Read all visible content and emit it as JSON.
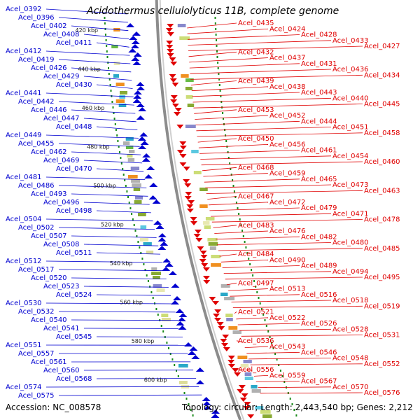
{
  "title": "Acidothermus cellulolyticus 11B, complete genome",
  "accession": {
    "label": "Accession:",
    "value": "NC_008578"
  },
  "topology": {
    "label": "Topology:",
    "value": "circular"
  },
  "length": {
    "label": "Length:",
    "value": "2,443,540 bp"
  },
  "genes": {
    "label": "Genes:",
    "value": "2,212"
  },
  "colors": {
    "forward": "#e00000",
    "reverse": "#0000d0",
    "backbone": "#999999",
    "scale_dots": "#1a8a1a"
  },
  "scale_labels": [
    "420 kbp",
    "440 kbp",
    "460 kbp",
    "480 kbp",
    "500 kbp",
    "520 kbp",
    "540 kbp",
    "560 kbp",
    "580 kbp",
    "600 kbp"
  ],
  "left_labels": [
    "Acel_0392",
    "Acel_0396",
    "Acel_0402",
    "Acel_0408",
    "Acel_0411",
    "Acel_0412",
    "Acel_0419",
    "Acel_0426",
    "Acel_0429",
    "Acel_0430",
    "Acel_0441",
    "Acel_0442",
    "Acel_0446",
    "Acel_0447",
    "Acel_0448",
    "Acel_0449",
    "Acel_0455",
    "Acel_0462",
    "Acel_0469",
    "Acel_0470",
    "Acel_0481",
    "Acel_0486",
    "Acel_0493",
    "Acel_0496",
    "Acel_0498",
    "Acel_0504",
    "Acel_0502",
    "Acel_0507",
    "Acel_0508",
    "Acel_0511",
    "Acel_0512",
    "Acel_0517",
    "Acel_0520",
    "Acel_0523",
    "Acel_0524",
    "Acel_0530",
    "Acel_0532",
    "Acel_0540",
    "Acel_0541",
    "Acel_0545",
    "Acel_0551",
    "Acel_0557",
    "Acel_0561",
    "Acel_0560",
    "Acel_0568",
    "Acel_0574",
    "Acel_0575"
  ],
  "right_labels": [
    "Acel_0435",
    "Acel_0424",
    "Acel_0428",
    "Acel_0433",
    "Acel_0427",
    "Acel_0432",
    "Acel_0437",
    "Acel_0431",
    "Acel_0436",
    "Acel_0434",
    "Acel_0439",
    "Acel_0438",
    "Acel_0443",
    "Acel_0440",
    "Acel_0445",
    "Acel_0453",
    "Acel_0452",
    "Acel_0444",
    "Acel_0451",
    "Acel_0458",
    "Acel_0450",
    "Acel_0456",
    "Acel_0461",
    "Acel_0454",
    "Acel_0460",
    "Acel_0468",
    "Acel_0459",
    "Acel_0465",
    "Acel_0473",
    "Acel_0463",
    "Acel_0467",
    "Acel_0472",
    "Acel_0479",
    "Acel_0471",
    "Acel_0478",
    "Acel_0483",
    "Acel_0476",
    "Acel_0482",
    "Acel_0480",
    "Acel_0485",
    "Acel_0484",
    "Acel_0490",
    "Acel_0489",
    "Acel_0494",
    "Acel_0495",
    "Acel_0497",
    "Acel_0513",
    "Acel_0516",
    "Acel_0518",
    "Acel_0519",
    "Acel_0521",
    "Acel_0522",
    "Acel_0526",
    "Acel_0528",
    "Acel_0531",
    "Acel_0536",
    "Acel_0543",
    "Acel_0546",
    "Acel_0548",
    "Acel_0552",
    "Acel_0556",
    "Acel_0559",
    "Acel_0567",
    "Acel_0570",
    "Acel_0576"
  ]
}
